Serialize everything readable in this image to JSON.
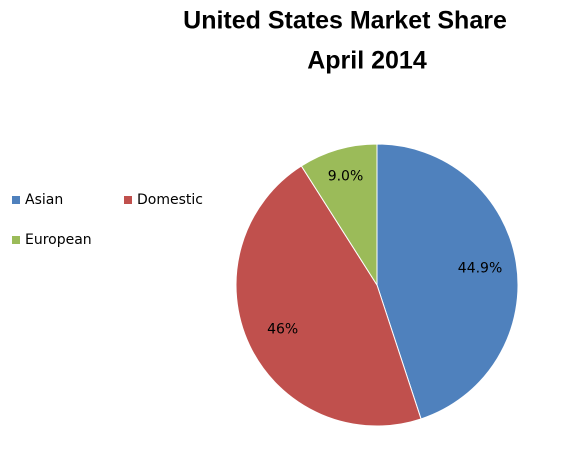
{
  "chart_data": {
    "type": "pie",
    "title": [
      "United States Market Share",
      "April 2014"
    ],
    "categories": [
      "Asian",
      "Domestic",
      "European"
    ],
    "values": [
      44.9,
      46,
      9.0
    ],
    "value_labels": [
      "44.9%",
      "46%",
      "9.0%"
    ],
    "colors": [
      "#4f81bd",
      "#c0504d",
      "#9bbb59"
    ],
    "legend": "left"
  }
}
